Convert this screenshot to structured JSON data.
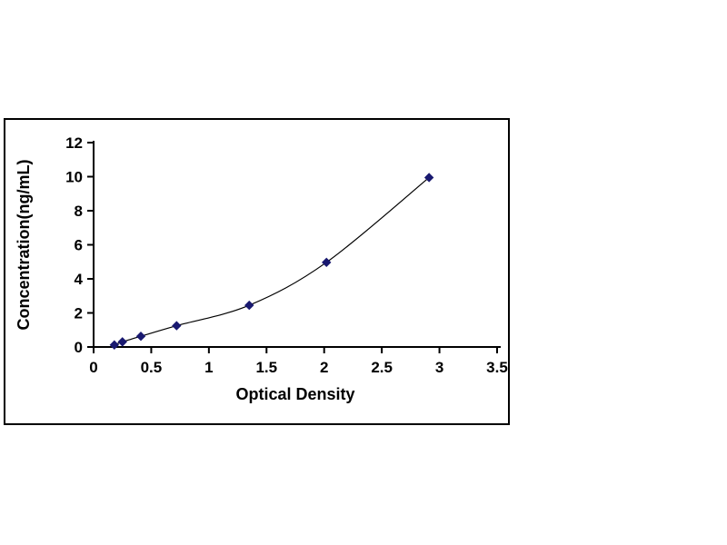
{
  "chart_data": {
    "type": "line",
    "title": "",
    "xlabel": "Optical Density",
    "ylabel": "Concentration(ng/mL)",
    "x": [
      0.18,
      0.25,
      0.41,
      0.72,
      1.35,
      2.02,
      2.91
    ],
    "y": [
      0.12,
      0.3,
      0.63,
      1.25,
      2.45,
      4.97,
      9.95
    ],
    "xlim": [
      0,
      3.5
    ],
    "ylim": [
      0,
      12
    ],
    "xticks": [
      0,
      0.5,
      1,
      1.5,
      2,
      2.5,
      3,
      3.5
    ],
    "yticks": [
      0,
      2,
      4,
      6,
      8,
      10,
      12
    ],
    "xtick_labels": [
      "0",
      "0.5",
      "1",
      "1.5",
      "2",
      "2.5",
      "3",
      "3.5"
    ],
    "ytick_labels": [
      "0",
      "2",
      "4",
      "6",
      "8",
      "10",
      "12"
    ],
    "grid": false,
    "legend": null,
    "marker": "diamond",
    "marker_color": "#191970",
    "line_color": "#000000",
    "axis_color": "#000000",
    "figure_border_color": "#000000",
    "background_color": "#ffffff"
  }
}
